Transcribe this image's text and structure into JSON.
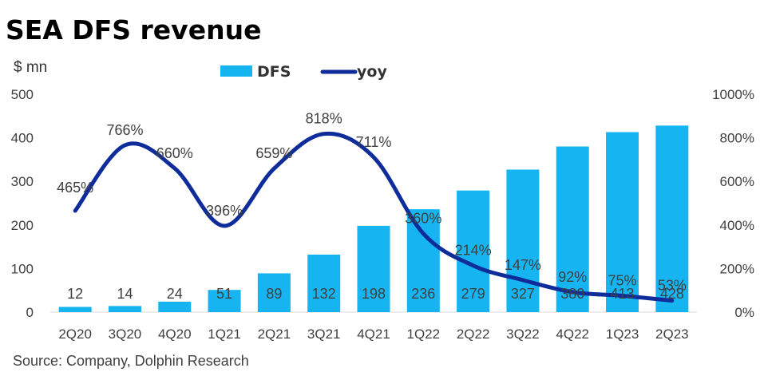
{
  "chart_data": {
    "type": "bar",
    "title": "SEA DFS revenue",
    "ylabel": "$ mn",
    "categories": [
      "2Q20",
      "3Q20",
      "4Q20",
      "1Q21",
      "2Q21",
      "3Q21",
      "4Q21",
      "1Q22",
      "2Q22",
      "3Q22",
      "4Q22",
      "1Q23",
      "2Q23"
    ],
    "series": [
      {
        "name": "DFS",
        "type": "bar",
        "axis": "left",
        "color": "#16B4F0",
        "values": [
          12,
          14,
          24,
          51,
          89,
          132,
          198,
          236,
          279,
          327,
          380,
          413,
          428
        ]
      },
      {
        "name": "yoy",
        "type": "line",
        "axis": "right",
        "color": "#0E2C9A",
        "values": [
          465,
          766,
          660,
          396,
          659,
          818,
          711,
          360,
          214,
          147,
          92,
          75,
          53
        ],
        "labels": [
          "465%",
          "766%",
          "660%",
          "396%",
          "659%",
          "818%",
          "711%",
          "360%",
          "214%",
          "147%",
          "92%",
          "75%",
          "53%"
        ]
      }
    ],
    "ylim": [
      0,
      500
    ],
    "yticks": [
      "0",
      "100",
      "200",
      "300",
      "400",
      "500"
    ],
    "y2lim": [
      0,
      1000
    ],
    "y2ticks": [
      "0%",
      "200%",
      "400%",
      "600%",
      "800%",
      "1000%"
    ],
    "legend_position": "top-center",
    "grid": false,
    "source": "Source: Company, Dolphin Research"
  }
}
